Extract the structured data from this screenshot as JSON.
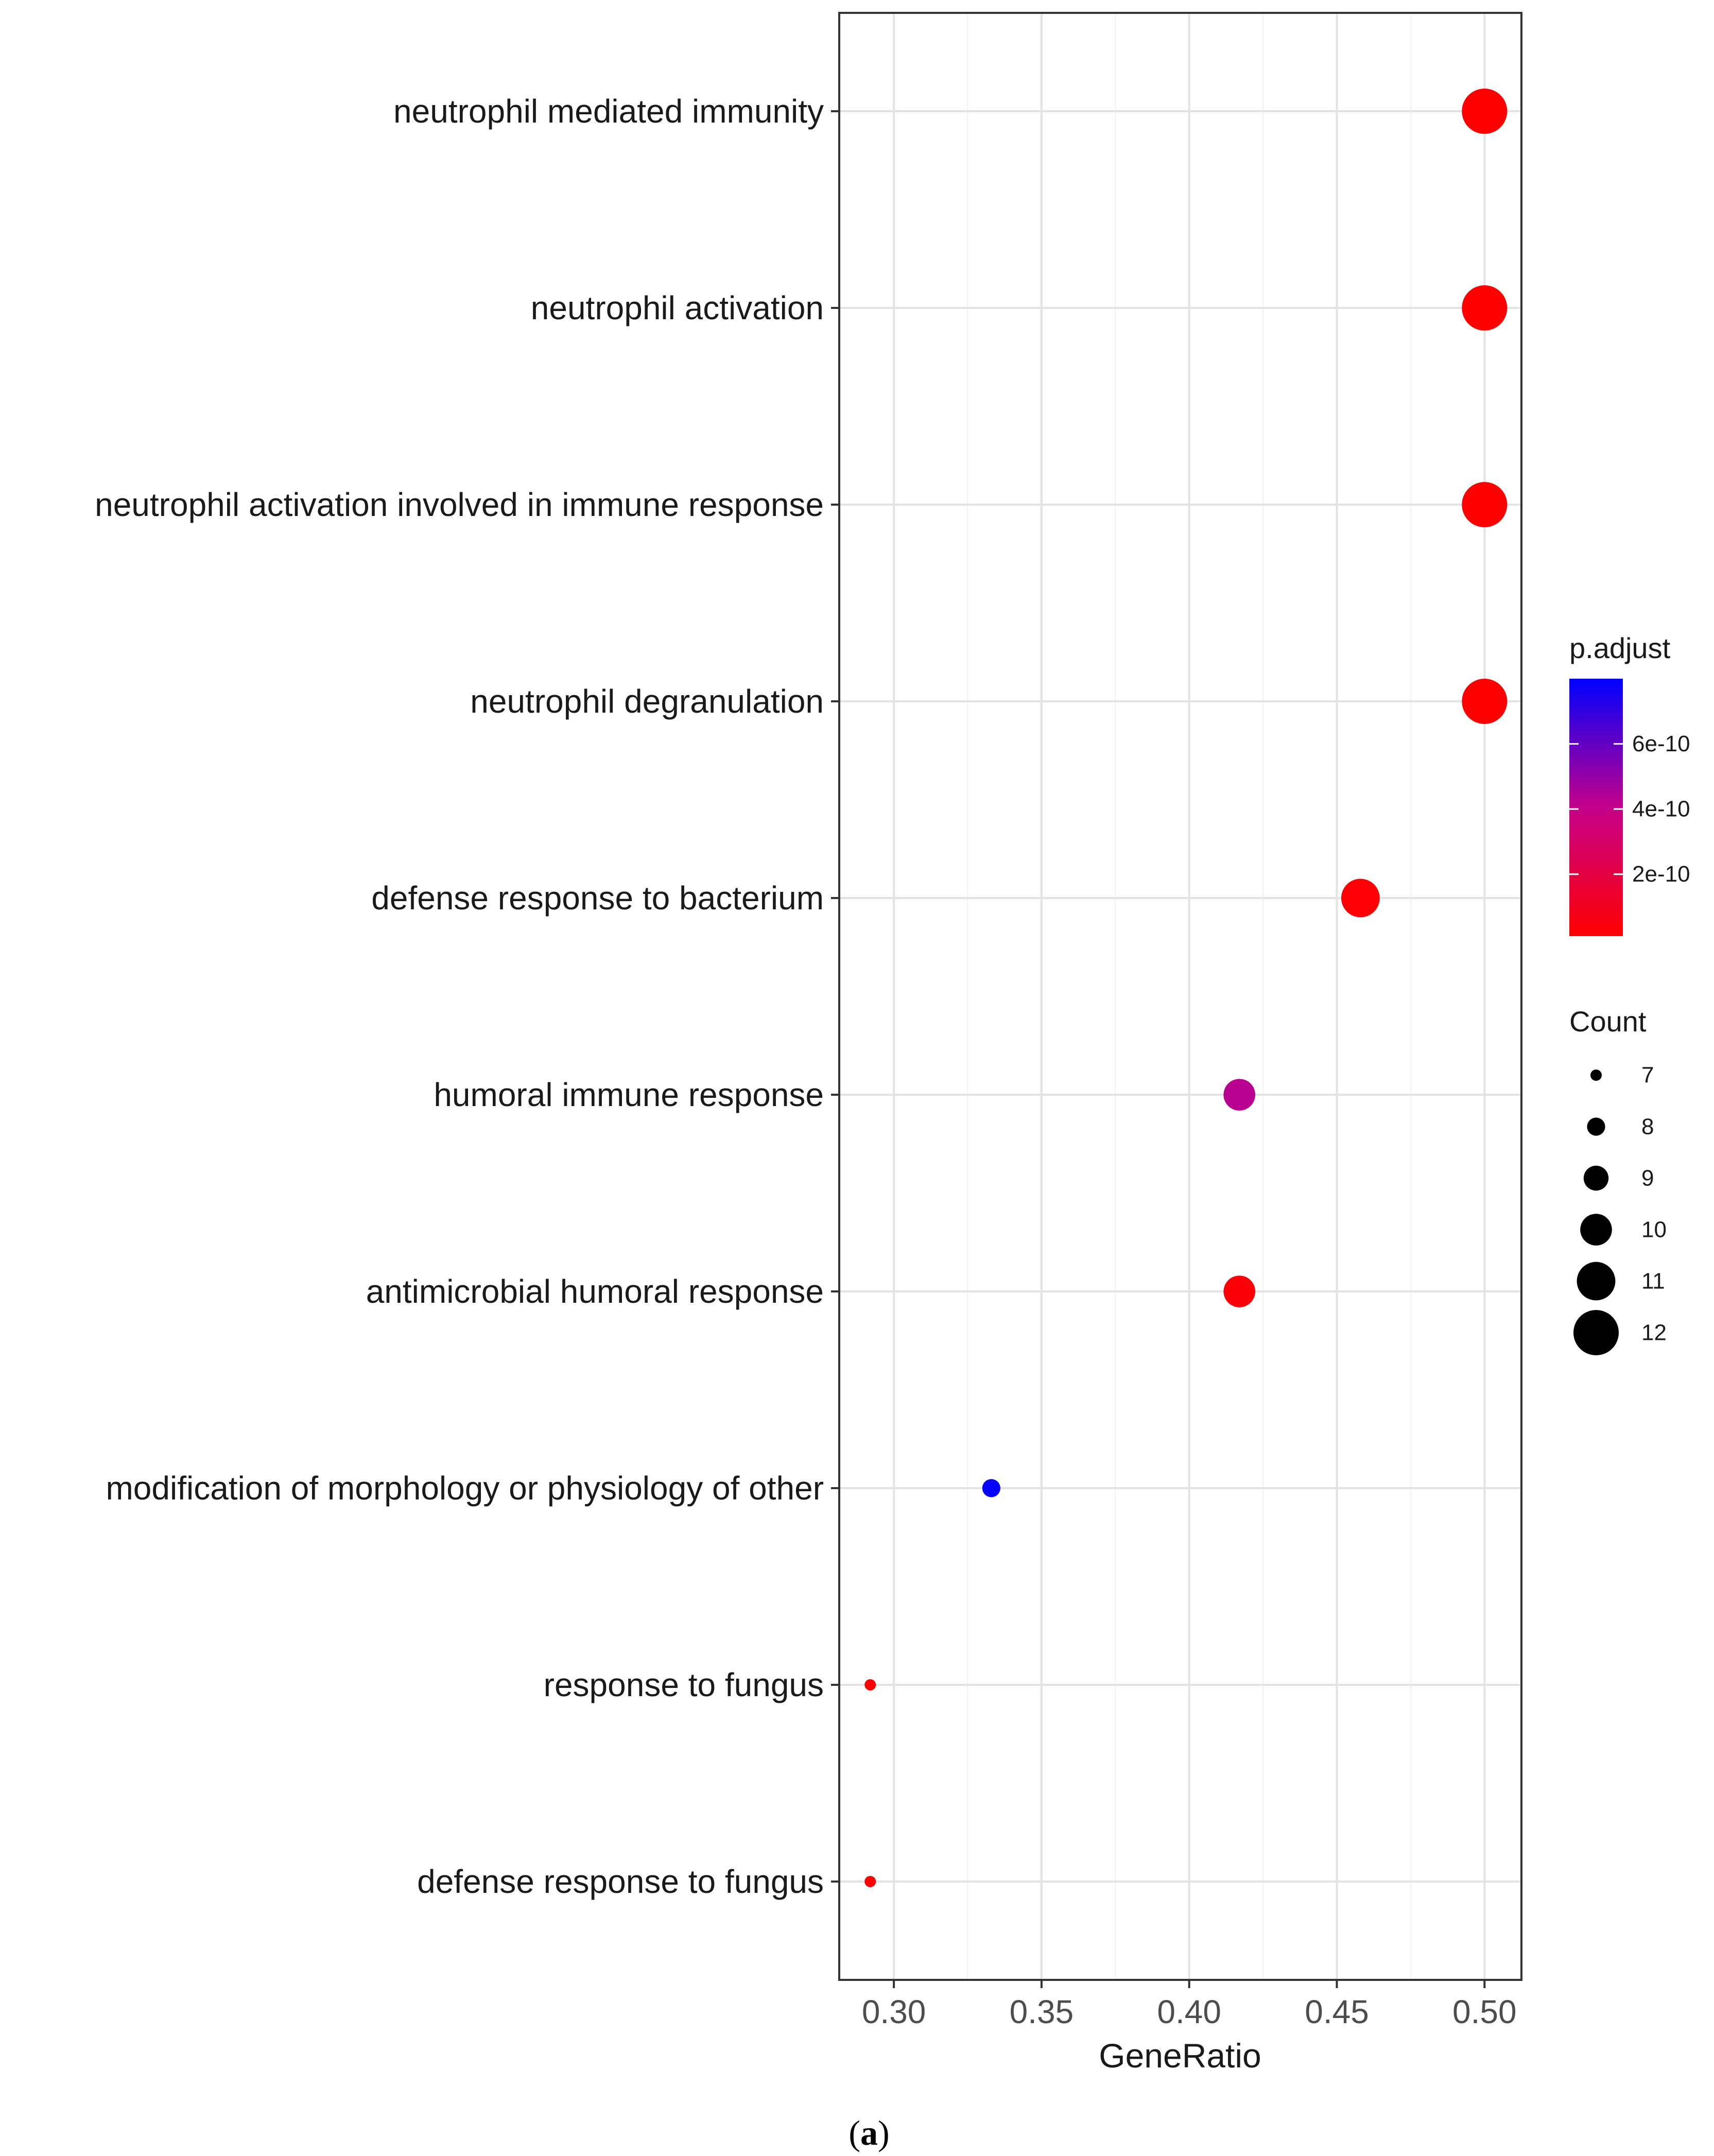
{
  "chart_data": {
    "type": "scatter",
    "subtype": "dotplot",
    "categories": [
      "neutrophil mediated immunity",
      "neutrophil activation",
      "neutrophil activation involved in immune response",
      "neutrophil degranulation",
      "defense response to bacterium",
      "humoral immune response",
      "antimicrobial humoral response",
      "modification of morphology or physiology of other",
      "response to fungus",
      "defense response to fungus"
    ],
    "points": [
      {
        "category": "neutrophil mediated immunity",
        "gene_ratio": 0.5,
        "count": 12,
        "p_adjust": 1e-11
      },
      {
        "category": "neutrophil activation",
        "gene_ratio": 0.5,
        "count": 12,
        "p_adjust": 1e-11
      },
      {
        "category": "neutrophil activation involved in immune response",
        "gene_ratio": 0.5,
        "count": 12,
        "p_adjust": 1e-11
      },
      {
        "category": "neutrophil degranulation",
        "gene_ratio": 0.5,
        "count": 12,
        "p_adjust": 1e-11
      },
      {
        "category": "defense response to bacterium",
        "gene_ratio": 0.458,
        "count": 11,
        "p_adjust": 2e-11
      },
      {
        "category": "humoral immune response",
        "gene_ratio": 0.417,
        "count": 10,
        "p_adjust": 4.3e-10
      },
      {
        "category": "antimicrobial humoral response",
        "gene_ratio": 0.417,
        "count": 10,
        "p_adjust": 3e-11
      },
      {
        "category": "modification of morphology or physiology of other",
        "gene_ratio": 0.333,
        "count": 8,
        "p_adjust": 7.9e-10
      },
      {
        "category": "response to fungus",
        "gene_ratio": 0.292,
        "count": 7,
        "p_adjust": 1e-11
      },
      {
        "category": "defense response to fungus",
        "gene_ratio": 0.292,
        "count": 7,
        "p_adjust": 1e-11
      }
    ],
    "xlabel": "GeneRatio",
    "xlim": [
      0.2815,
      0.5125
    ],
    "xticks": [
      0.3,
      0.35,
      0.4,
      0.45,
      0.5
    ],
    "xtick_labels": [
      "0.30",
      "0.35",
      "0.40",
      "0.45",
      "0.50"
    ],
    "grid": true,
    "color_legend": {
      "title": "p.adjust",
      "range": [
        1e-11,
        8e-10
      ],
      "low_color": "#ff0000",
      "high_color": "#0000ff",
      "ticks": [
        2e-10,
        4e-10,
        6e-10
      ],
      "tick_labels": [
        "2e-10",
        "4e-10",
        "6e-10"
      ],
      "placement": "right"
    },
    "size_legend": {
      "title": "Count",
      "values": [
        7,
        8,
        9,
        10,
        11,
        12
      ],
      "labels": [
        "7",
        "8",
        "9",
        "10",
        "11",
        "12"
      ],
      "placement": "right"
    }
  },
  "caption": {
    "open": "(",
    "letter": "a",
    "close": ")"
  }
}
